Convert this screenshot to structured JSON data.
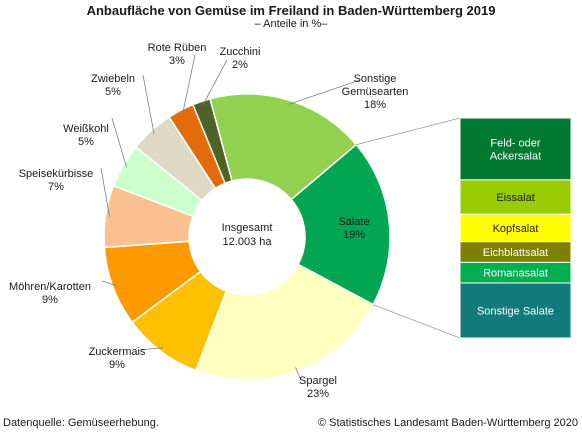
{
  "chart_data": {
    "type": "pie",
    "title": "Anbaufläche von Gemüse im Freiland in Baden-Württemberg 2019",
    "subtitle": "– Anteile in %–",
    "center_label": [
      "Insgesamt",
      "12.003 ha"
    ],
    "slices": [
      {
        "label": [
          "Sonstige",
          "Gemüsearten"
        ],
        "value": 18,
        "value_label": "18%",
        "color": "#92d050"
      },
      {
        "label": [
          "Salate"
        ],
        "value": 19,
        "value_label": "19%",
        "color": "#00a651"
      },
      {
        "label": [
          "Spargel"
        ],
        "value": 23,
        "value_label": "23%",
        "color": "#ffffc0"
      },
      {
        "label": [
          "Zuckermais"
        ],
        "value": 9,
        "value_label": "9%",
        "color": "#ffc000"
      },
      {
        "label": [
          "Möhren/Karotten"
        ],
        "value": 9,
        "value_label": "9%",
        "color": "#ff9900"
      },
      {
        "label": [
          "Speisekürbisse"
        ],
        "value": 7,
        "value_label": "7%",
        "color": "#fac090"
      },
      {
        "label": [
          "Weißkohl"
        ],
        "value": 5,
        "value_label": "5%",
        "color": "#ccffcc"
      },
      {
        "label": [
          "Zwiebeln"
        ],
        "value": 5,
        "value_label": "5%",
        "color": "#ddd9c3"
      },
      {
        "label": [
          "Rote Rüben"
        ],
        "value": 3,
        "value_label": "3%",
        "color": "#e36c0a"
      },
      {
        "label": [
          "Zucchini"
        ],
        "value": 2,
        "value_label": "2%",
        "color": "#4f6228"
      }
    ],
    "breakdown": {
      "parent": "Salate",
      "items": [
        {
          "label": [
            "Feld- oder",
            "Ackersalat"
          ],
          "value": 4.5,
          "color": "#007a33",
          "text_color": "#ffffff"
        },
        {
          "label": [
            "Eissalat"
          ],
          "value": 2.5,
          "color": "#99cc00",
          "text_color": "#1a1a1a"
        },
        {
          "label": [
            "Kopfsalat"
          ],
          "value": 2.0,
          "color": "#ffff00",
          "text_color": "#1a1a1a"
        },
        {
          "label": [
            "Eichblattsalat"
          ],
          "value": 1.5,
          "color": "#808000",
          "text_color": "#ffffff"
        },
        {
          "label": [
            "Romanasalat"
          ],
          "value": 1.5,
          "color": "#00b050",
          "text_color": "#ffffff"
        },
        {
          "label": [
            "Sonstige Salate"
          ],
          "value": 4.0,
          "color": "#117a7a",
          "text_color": "#ffffff"
        }
      ]
    }
  },
  "footer": {
    "source": "Datenquelle: Gemüseerhebung.",
    "copyright": "© Statistisches Landesamt Baden-Württemberg 2020"
  }
}
